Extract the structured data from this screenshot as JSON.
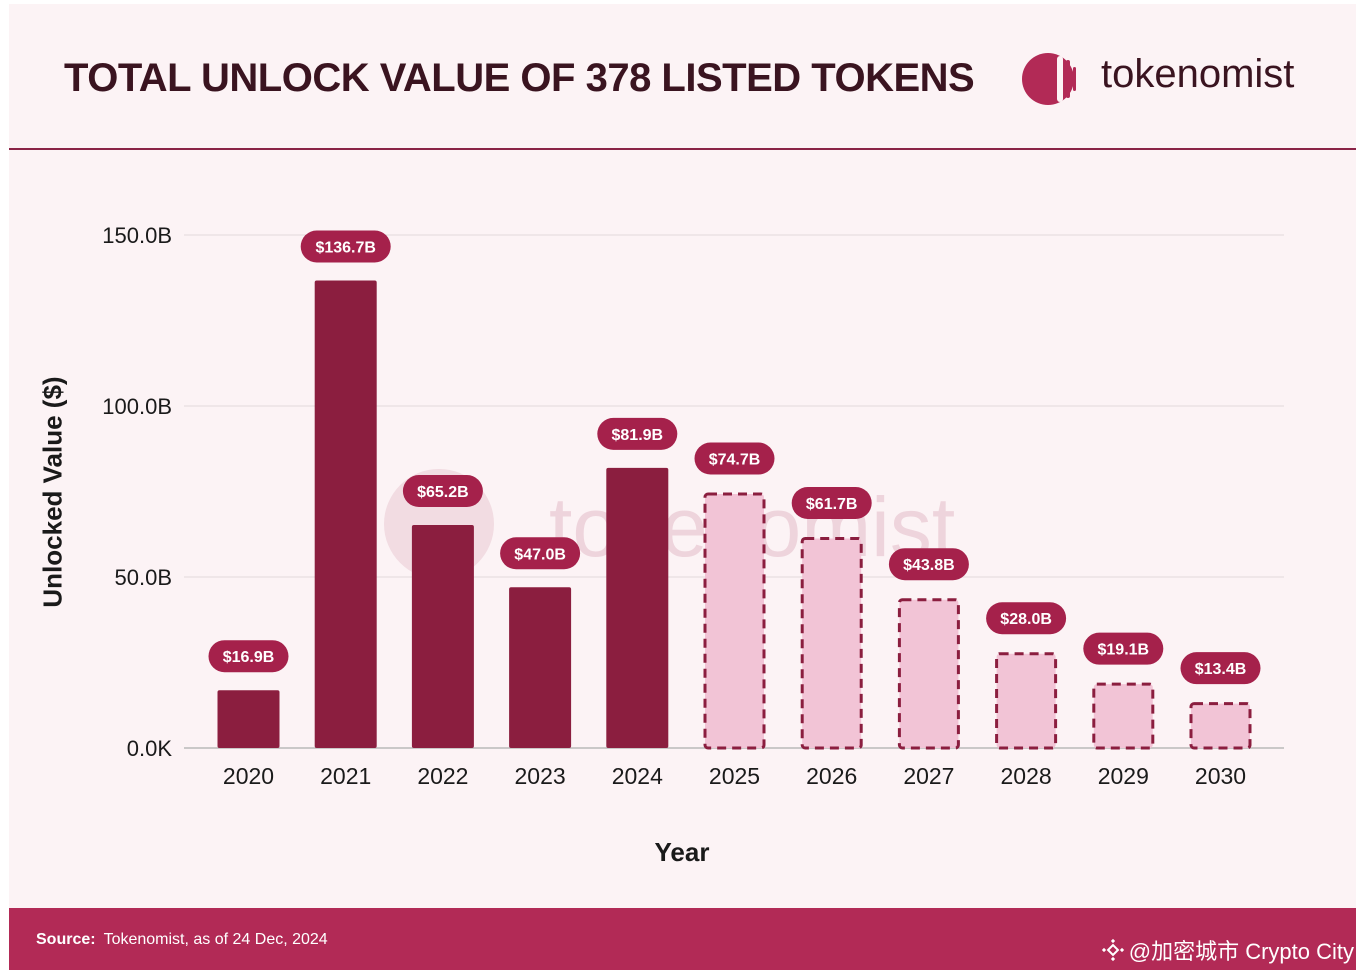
{
  "header": {
    "title": "TOTAL UNLOCK VALUE OF 378 LISTED TOKENS",
    "brand": "tokenomist"
  },
  "watermark": "tokenomist",
  "footer": {
    "source_label": "Source:",
    "source_text": "Tokenomist, as of 24 Dec, 2024",
    "credit": "@加密城市 Crypto City"
  },
  "colors": {
    "actual_bar": "#8b1e3f",
    "projected_fill": "#f2c4d6",
    "projected_stroke": "#8b1e3f",
    "label_pill": "#a5214b",
    "footer": "#b22a56"
  },
  "chart_data": {
    "type": "bar",
    "title": "TOTAL UNLOCK VALUE OF 378 LISTED TOKENS",
    "xlabel": "Year",
    "ylabel": "Unlocked Value ($)",
    "categories": [
      "2020",
      "2021",
      "2022",
      "2023",
      "2024",
      "2025",
      "2026",
      "2027",
      "2028",
      "2029",
      "2030"
    ],
    "values": [
      16.9,
      136.7,
      65.2,
      47.0,
      81.9,
      74.7,
      61.7,
      43.8,
      28.0,
      19.1,
      13.4
    ],
    "data_labels": [
      "$16.9B",
      "$136.7B",
      "$65.2B",
      "$47.0B",
      "$81.9B",
      "$74.7B",
      "$61.7B",
      "$43.8B",
      "$28.0B",
      "$19.1B",
      "$13.4B"
    ],
    "bar_style": [
      "solid",
      "solid",
      "solid",
      "solid",
      "solid",
      "dashed",
      "dashed",
      "dashed",
      "dashed",
      "dashed",
      "dashed"
    ],
    "unit": "B",
    "ylim": [
      0,
      150
    ],
    "yticks": [
      0,
      50,
      100,
      150
    ],
    "ytick_labels": [
      "0.0K",
      "50.0B",
      "100.0B",
      "150.0B"
    ],
    "grid": true
  }
}
